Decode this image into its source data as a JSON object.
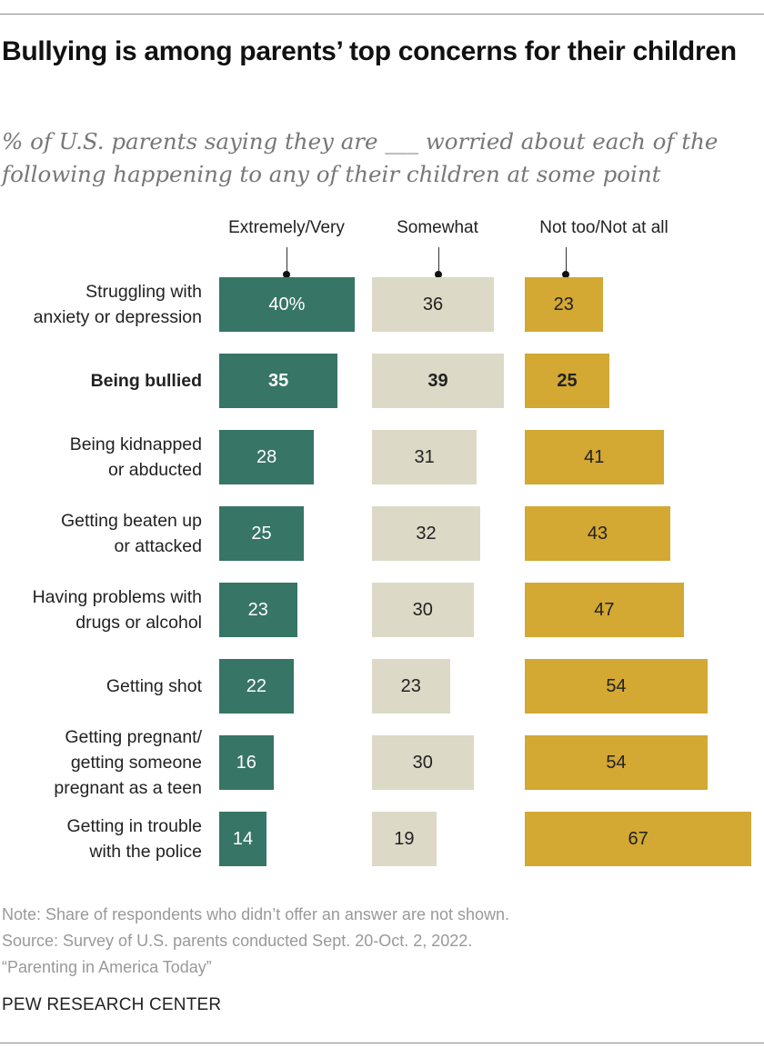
{
  "chart_data": {
    "type": "bar",
    "orientation": "horizontal",
    "layout": "side-by-side panels",
    "title": "Bullying is among parents’ top concerns for their children",
    "subtitle": "% of U.S. parents saying they are ___ worried about each of the following happening to any of their children at some point",
    "categories": [
      "Struggling with anxiety or depression",
      "Being bullied",
      "Being kidnapped or abducted",
      "Getting beaten up or attacked",
      "Having problems with drugs or alcohol",
      "Getting shot",
      "Getting pregnant/ getting someone pregnant as a teen",
      "Getting in trouble with the police"
    ],
    "category_lines": [
      [
        "Struggling with",
        "anxiety or depression"
      ],
      [
        "Being bullied"
      ],
      [
        "Being kidnapped",
        "or abducted"
      ],
      [
        "Getting beaten up",
        "or attacked"
      ],
      [
        "Having problems with",
        "drugs or alcohol"
      ],
      [
        "Getting shot"
      ],
      [
        "Getting pregnant/",
        "getting someone",
        "pregnant as a teen"
      ],
      [
        "Getting in trouble",
        "with the police"
      ]
    ],
    "highlighted_category": "Being bullied",
    "series": [
      {
        "name": "Extremely/Very",
        "color": "#377566",
        "text_color": "#ffffff",
        "values": [
          40,
          35,
          28,
          25,
          23,
          22,
          16,
          14
        ]
      },
      {
        "name": "Somewhat",
        "color": "#dcd9c6",
        "text_color": "#222222",
        "values": [
          36,
          39,
          31,
          32,
          30,
          23,
          30,
          19
        ]
      },
      {
        "name": "Not too/Not at all",
        "color": "#d3a833",
        "text_color": "#222222",
        "values": [
          23,
          25,
          41,
          43,
          47,
          54,
          54,
          67
        ]
      }
    ],
    "value_labels": [
      [
        "40%",
        "36",
        "23"
      ],
      [
        "35",
        "39",
        "25"
      ],
      [
        "28",
        "31",
        "41"
      ],
      [
        "25",
        "32",
        "43"
      ],
      [
        "23",
        "30",
        "47"
      ],
      [
        "22",
        "23",
        "54"
      ],
      [
        "16",
        "30",
        "54"
      ],
      [
        "14",
        "19",
        "67"
      ]
    ],
    "unit": "%"
  },
  "notes": [
    "Note: Share of respondents who didn’t offer an answer are not shown.",
    "Source: Survey of U.S. parents conducted Sept. 20-Oct. 2, 2022.",
    "“Parenting in America Today”"
  ],
  "source_org": "PEW RESEARCH CENTER"
}
